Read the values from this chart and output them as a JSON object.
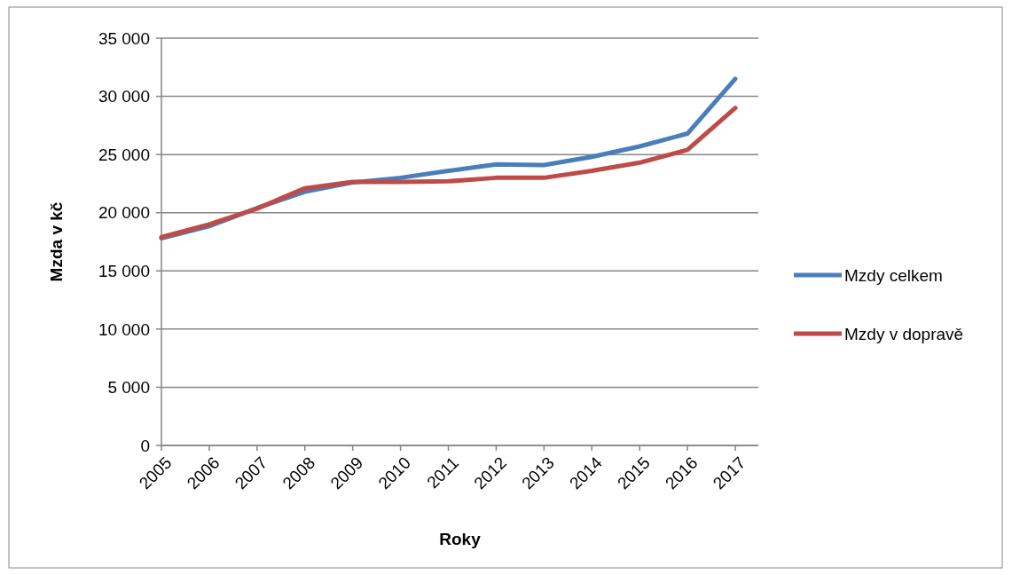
{
  "chart_data": {
    "type": "line",
    "xlabel": "Roky",
    "ylabel": "Mzda v kč",
    "categories": [
      "2005",
      "2006",
      "2007",
      "2008",
      "2009",
      "2010",
      "2011",
      "2012",
      "2013",
      "2014",
      "2015",
      "2016",
      "2017"
    ],
    "series": [
      {
        "name": "Mzdy celkem",
        "color": "#4a7ebb",
        "values": [
          17800,
          18850,
          20400,
          21800,
          22600,
          23000,
          23600,
          24150,
          24100,
          24800,
          25700,
          26800,
          31500
        ]
      },
      {
        "name": "Mzdy v dopravě",
        "color": "#be4b48",
        "values": [
          17900,
          19000,
          20350,
          22100,
          22650,
          22650,
          22700,
          23000,
          23000,
          23600,
          24300,
          25400,
          29000
        ]
      }
    ],
    "ylim": [
      0,
      35000
    ],
    "yticks": [
      {
        "value": 0,
        "label": "0"
      },
      {
        "value": 5000,
        "label": "5 000"
      },
      {
        "value": 10000,
        "label": "10 000"
      },
      {
        "value": 15000,
        "label": "15 000"
      },
      {
        "value": 20000,
        "label": "20 000"
      },
      {
        "value": 25000,
        "label": "25 000"
      },
      {
        "value": 30000,
        "label": "30 000"
      },
      {
        "value": 35000,
        "label": "35 000"
      }
    ],
    "grid": "y",
    "legend": "right",
    "marker": "none",
    "line_style": "solid"
  }
}
